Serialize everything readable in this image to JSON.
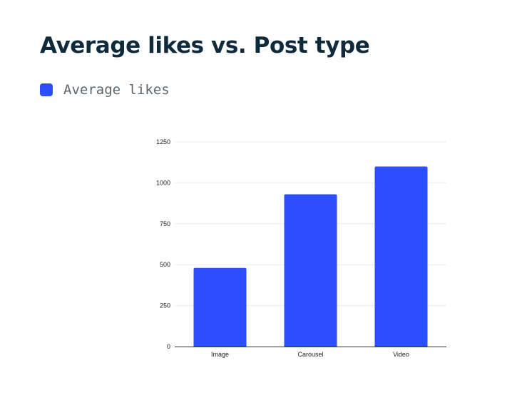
{
  "chart_data": {
    "type": "bar",
    "title": "Average likes vs. Post type",
    "xlabel": "",
    "ylabel": "",
    "categories": [
      "Image",
      "Carousel",
      "Video"
    ],
    "series": [
      {
        "name": "Average likes",
        "values": [
          480,
          930,
          1100
        ],
        "color": "#2b4eff"
      }
    ],
    "ylim": [
      0,
      1250
    ],
    "yticks": [
      0,
      250,
      500,
      750,
      1000,
      1250
    ],
    "grid": true,
    "legend_position": "top-left"
  }
}
